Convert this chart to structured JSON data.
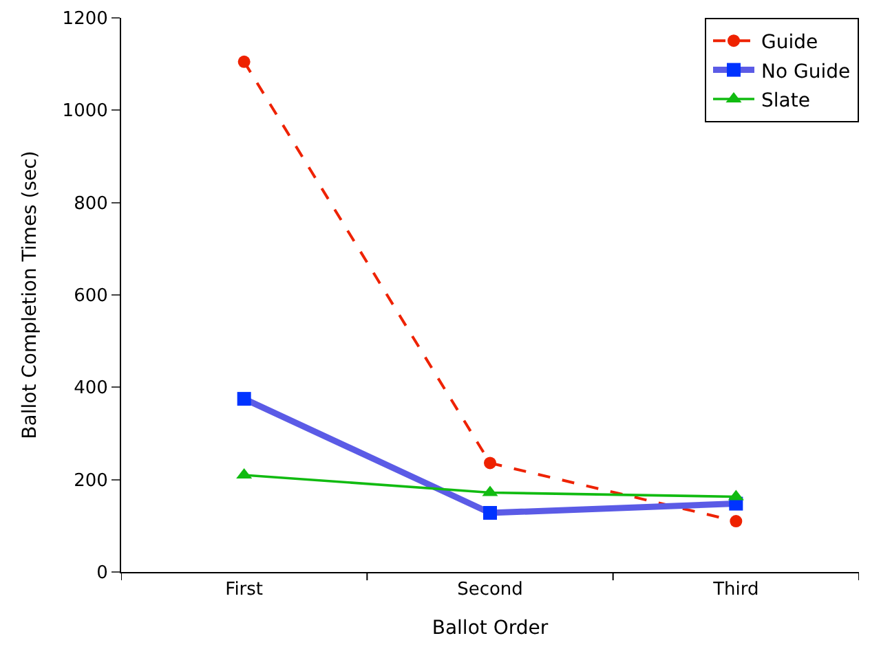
{
  "chart_data": {
    "type": "line",
    "xlabel": "Ballot Order",
    "ylabel": "Ballot Completion Times (sec)",
    "categories": [
      "First",
      "Second",
      "Third"
    ],
    "series": [
      {
        "name": "Guide",
        "color": "#ee2200",
        "marker": "circle",
        "line_style": "dashed",
        "values": [
          1105,
          236,
          110
        ]
      },
      {
        "name": "No Guide",
        "color": "#0033ff",
        "marker": "square",
        "line_style": "solid",
        "values": [
          375,
          128,
          148
        ]
      },
      {
        "name": "Slate",
        "color": "#11bb11",
        "marker": "triangle",
        "line_style": "solid",
        "values": [
          210,
          172,
          163
        ]
      }
    ],
    "ylim": [
      0,
      1200
    ],
    "yticks": [
      0,
      200,
      400,
      600,
      800,
      1000,
      1200
    ],
    "legend": "top right"
  }
}
